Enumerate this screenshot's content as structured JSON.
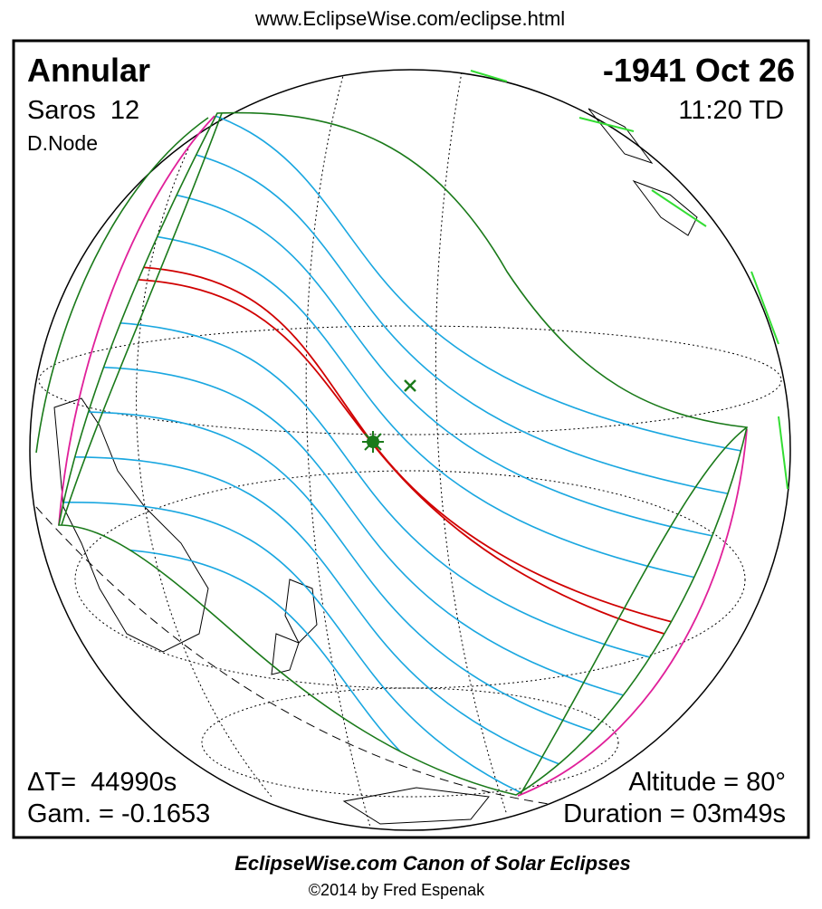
{
  "header": {
    "url": "www.EclipseWise.com/eclipse.html"
  },
  "panel": {
    "eclipse_type": "Annular",
    "date": "-1941 Oct 26",
    "saros": "Saros  12",
    "time": "11:20 TD",
    "node": "D.Node",
    "delta_t": "ΔT=  44990s",
    "gamma": "Gam. = -0.1653",
    "altitude": "Altitude = 80°",
    "duration": "Duration = 03m49s"
  },
  "footer": {
    "title": "EclipseWise.com Canon of Solar Eclipses",
    "credit": "©2014 by Fred Espenak"
  }
}
